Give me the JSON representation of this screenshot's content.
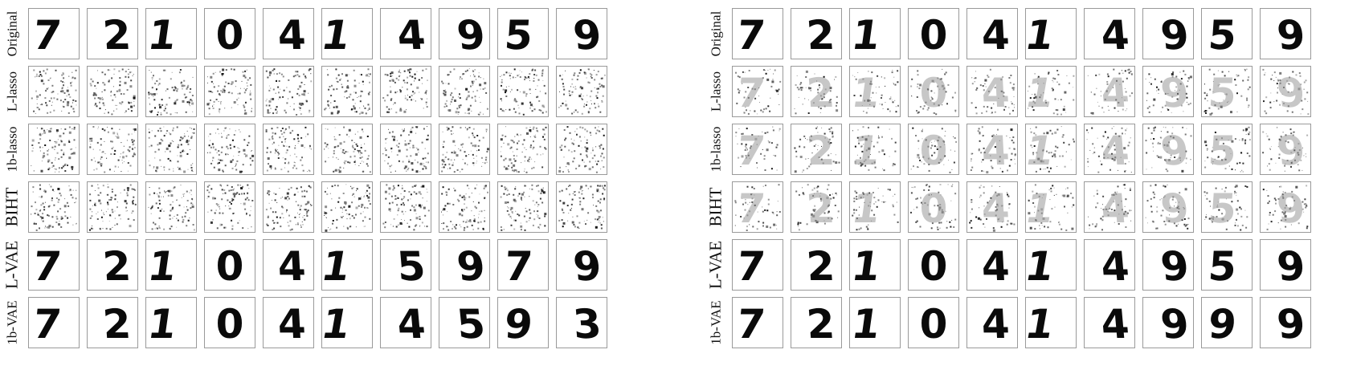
{
  "figure": {
    "digits": [
      "7",
      "2",
      "1",
      "0",
      "4",
      "1",
      "4",
      "9",
      "5",
      "9"
    ],
    "panels": [
      {
        "id": "left",
        "rows": [
          {
            "label": "Original",
            "kind": "digit",
            "values": [
              "7",
              "2",
              "1",
              "0",
              "4",
              "1",
              "4",
              "9",
              "5",
              "9"
            ]
          },
          {
            "label": "L-lasso",
            "kind": "noise",
            "values": [
              "",
              "",
              "",
              "",
              "",
              "",
              "",
              "",
              "",
              ""
            ]
          },
          {
            "label": "1b-lasso",
            "kind": "noise",
            "values": [
              "",
              "",
              "",
              "",
              "",
              "",
              "",
              "",
              "",
              ""
            ]
          },
          {
            "label": "BIHT",
            "kind": "noise",
            "values": [
              "",
              "",
              "",
              "",
              "",
              "",
              "",
              "",
              "",
              ""
            ]
          },
          {
            "label": "L-VAE",
            "kind": "digit",
            "values": [
              "7",
              "2",
              "1",
              "0",
              "4",
              "1",
              "5",
              "9",
              "7",
              "9"
            ]
          },
          {
            "label": "1b-VAE",
            "kind": "digit",
            "values": [
              "7",
              "2",
              "1",
              "0",
              "4",
              "1",
              "4",
              "5",
              "9",
              "3"
            ]
          }
        ]
      },
      {
        "id": "right",
        "rows": [
          {
            "label": "Original",
            "kind": "digit",
            "values": [
              "7",
              "2",
              "1",
              "0",
              "4",
              "1",
              "4",
              "9",
              "5",
              "9"
            ]
          },
          {
            "label": "L-lasso",
            "kind": "faint",
            "values": [
              "7",
              "2",
              "1",
              "0",
              "4",
              "1",
              "4",
              "9",
              "5",
              "9"
            ]
          },
          {
            "label": "1b-lasso",
            "kind": "faint",
            "values": [
              "7",
              "2",
              "1",
              "0",
              "4",
              "1",
              "4",
              "9",
              "5",
              "9"
            ]
          },
          {
            "label": "BIHT",
            "kind": "faint",
            "values": [
              "7",
              "2",
              "1",
              "0",
              "4",
              "1",
              "4",
              "9",
              "5",
              "9"
            ]
          },
          {
            "label": "L-VAE",
            "kind": "digit",
            "values": [
              "7",
              "2",
              "1",
              "0",
              "4",
              "1",
              "4",
              "9",
              "5",
              "9"
            ]
          },
          {
            "label": "1b-VAE",
            "kind": "digit",
            "values": [
              "7",
              "2",
              "1",
              "0",
              "4",
              "1",
              "4",
              "9",
              "9",
              "9"
            ]
          }
        ]
      }
    ]
  }
}
